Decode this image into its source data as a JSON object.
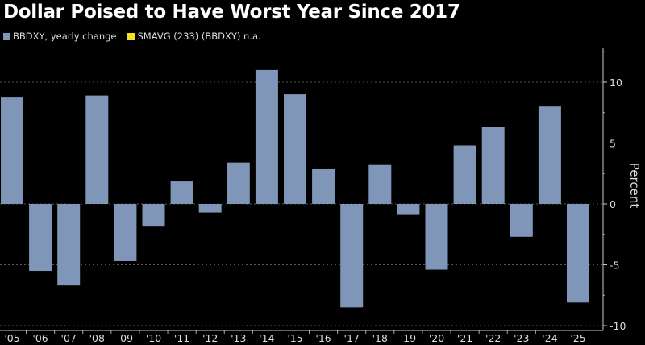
{
  "chart_data": {
    "type": "bar",
    "title": "Dollar Poised to Have Worst Year Since 2017",
    "legend": [
      {
        "label": "BBDXY, yearly change",
        "color": "#7f96b8"
      },
      {
        "label": "SMAVG (233) (BBDXY) n.a.",
        "color": "#f5e11d"
      }
    ],
    "categories": [
      "'05",
      "'06",
      "'07",
      "'08",
      "'09",
      "'10",
      "'11",
      "'12",
      "'13",
      "'14",
      "'15",
      "'16",
      "'17",
      "'18",
      "'19",
      "'20",
      "'21",
      "'22",
      "'23",
      "'24",
      "'25"
    ],
    "values": [
      8.8,
      -5.5,
      -6.7,
      8.9,
      -4.7,
      -1.8,
      1.85,
      -0.7,
      3.4,
      11.0,
      9.0,
      2.85,
      -8.5,
      3.2,
      -0.9,
      -5.4,
      4.8,
      6.3,
      -2.7,
      8.0,
      -8.1
    ],
    "ylabel": "Percent",
    "xlabel": "",
    "ylim": [
      -10.5,
      12.5
    ],
    "yticks": [
      10,
      5,
      0,
      -5,
      -10
    ],
    "grid": true,
    "legend_position": "top-left",
    "y_axis_side": "right"
  }
}
